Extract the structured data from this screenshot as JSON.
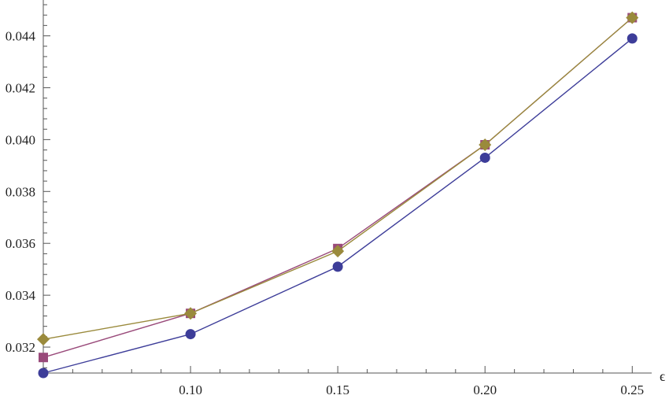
{
  "chart_data": {
    "type": "line",
    "title": "",
    "xlabel": "ϵ",
    "ylabel": "",
    "x": [
      0.05,
      0.1,
      0.15,
      0.2,
      0.25
    ],
    "xlim": [
      0.05,
      0.255
    ],
    "ylim": [
      0.031,
      0.0452
    ],
    "x_ticks": [
      0.1,
      0.15,
      0.2,
      0.25
    ],
    "x_tick_labels": [
      "0.10",
      "0.15",
      "0.20",
      "0.25"
    ],
    "y_ticks": [
      0.032,
      0.034,
      0.036,
      0.038,
      0.04,
      0.042,
      0.044
    ],
    "y_tick_labels": [
      "0.032",
      "0.034",
      "0.036",
      "0.038",
      "0.040",
      "0.042",
      "0.044"
    ],
    "grid": false,
    "legend": "none",
    "series": [
      {
        "color": "#3d3d99",
        "marker": "circle",
        "values": [
          0.031,
          0.0325,
          0.0351,
          0.0393,
          0.0439
        ]
      },
      {
        "color": "#994a7a",
        "marker": "square",
        "values": [
          0.0316,
          0.0333,
          0.0358,
          0.0398,
          0.0447
        ]
      },
      {
        "color": "#9a8a3c",
        "marker": "diamond",
        "values": [
          0.0323,
          0.0333,
          0.0357,
          0.0398,
          0.0447
        ]
      }
    ]
  }
}
